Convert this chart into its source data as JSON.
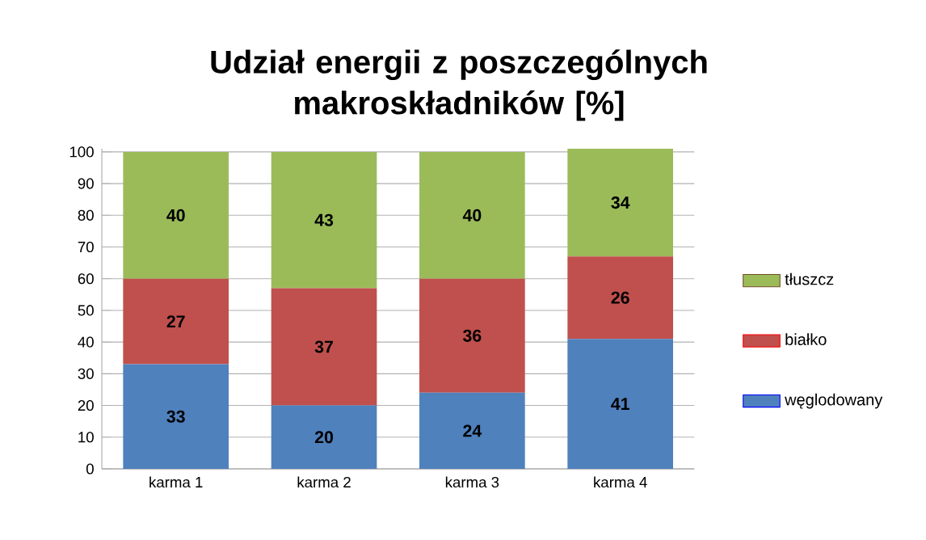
{
  "chart_data": {
    "type": "bar",
    "stacked": true,
    "title": "Udział energii z poszczególnych makroskładników [%]",
    "categories": [
      "karma 1",
      "karma 2",
      "karma 3",
      "karma 4"
    ],
    "series": [
      {
        "name": "węglodowany",
        "color": "#4f81bd",
        "values": [
          33,
          20,
          24,
          41
        ]
      },
      {
        "name": "białko",
        "color": "#c0504d",
        "values": [
          27,
          37,
          36,
          26
        ]
      },
      {
        "name": "tłuszcz",
        "color": "#9bbb59",
        "values": [
          40,
          43,
          40,
          34
        ]
      }
    ],
    "ylim": [
      0,
      101
    ],
    "yticks": [
      0,
      10,
      20,
      30,
      40,
      50,
      60,
      70,
      80,
      90,
      100
    ],
    "grid": "y",
    "legend": "right",
    "data_labels": true
  }
}
